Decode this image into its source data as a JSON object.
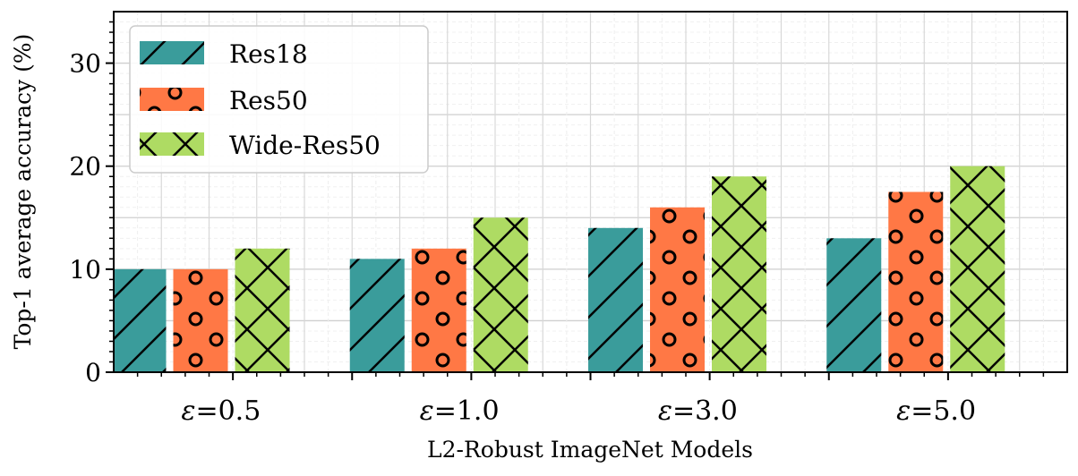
{
  "chart_data": {
    "type": "bar",
    "title": "",
    "xlabel": "L2-Robust ImageNet Models",
    "ylabel": "Top-1 average accuracy (%)",
    "categories": [
      "ε=0.5",
      "ε=1.0",
      "ε=3.0",
      "ε=5.0"
    ],
    "ylim": [
      0,
      35
    ],
    "yticks": [
      0,
      10,
      20,
      30
    ],
    "grid": true,
    "legend_position": "top-left",
    "series": [
      {
        "name": "Res18",
        "values": [
          10,
          11,
          14,
          13
        ],
        "color": "#3a9c9b",
        "hatch": "diagonal"
      },
      {
        "name": "Res50",
        "values": [
          10,
          12,
          16,
          17.5
        ],
        "color": "#ff7845",
        "hatch": "circles"
      },
      {
        "name": "Wide-Res50",
        "values": [
          12,
          15,
          19,
          20
        ],
        "color": "#aedb63",
        "hatch": "crosshatch"
      }
    ]
  }
}
